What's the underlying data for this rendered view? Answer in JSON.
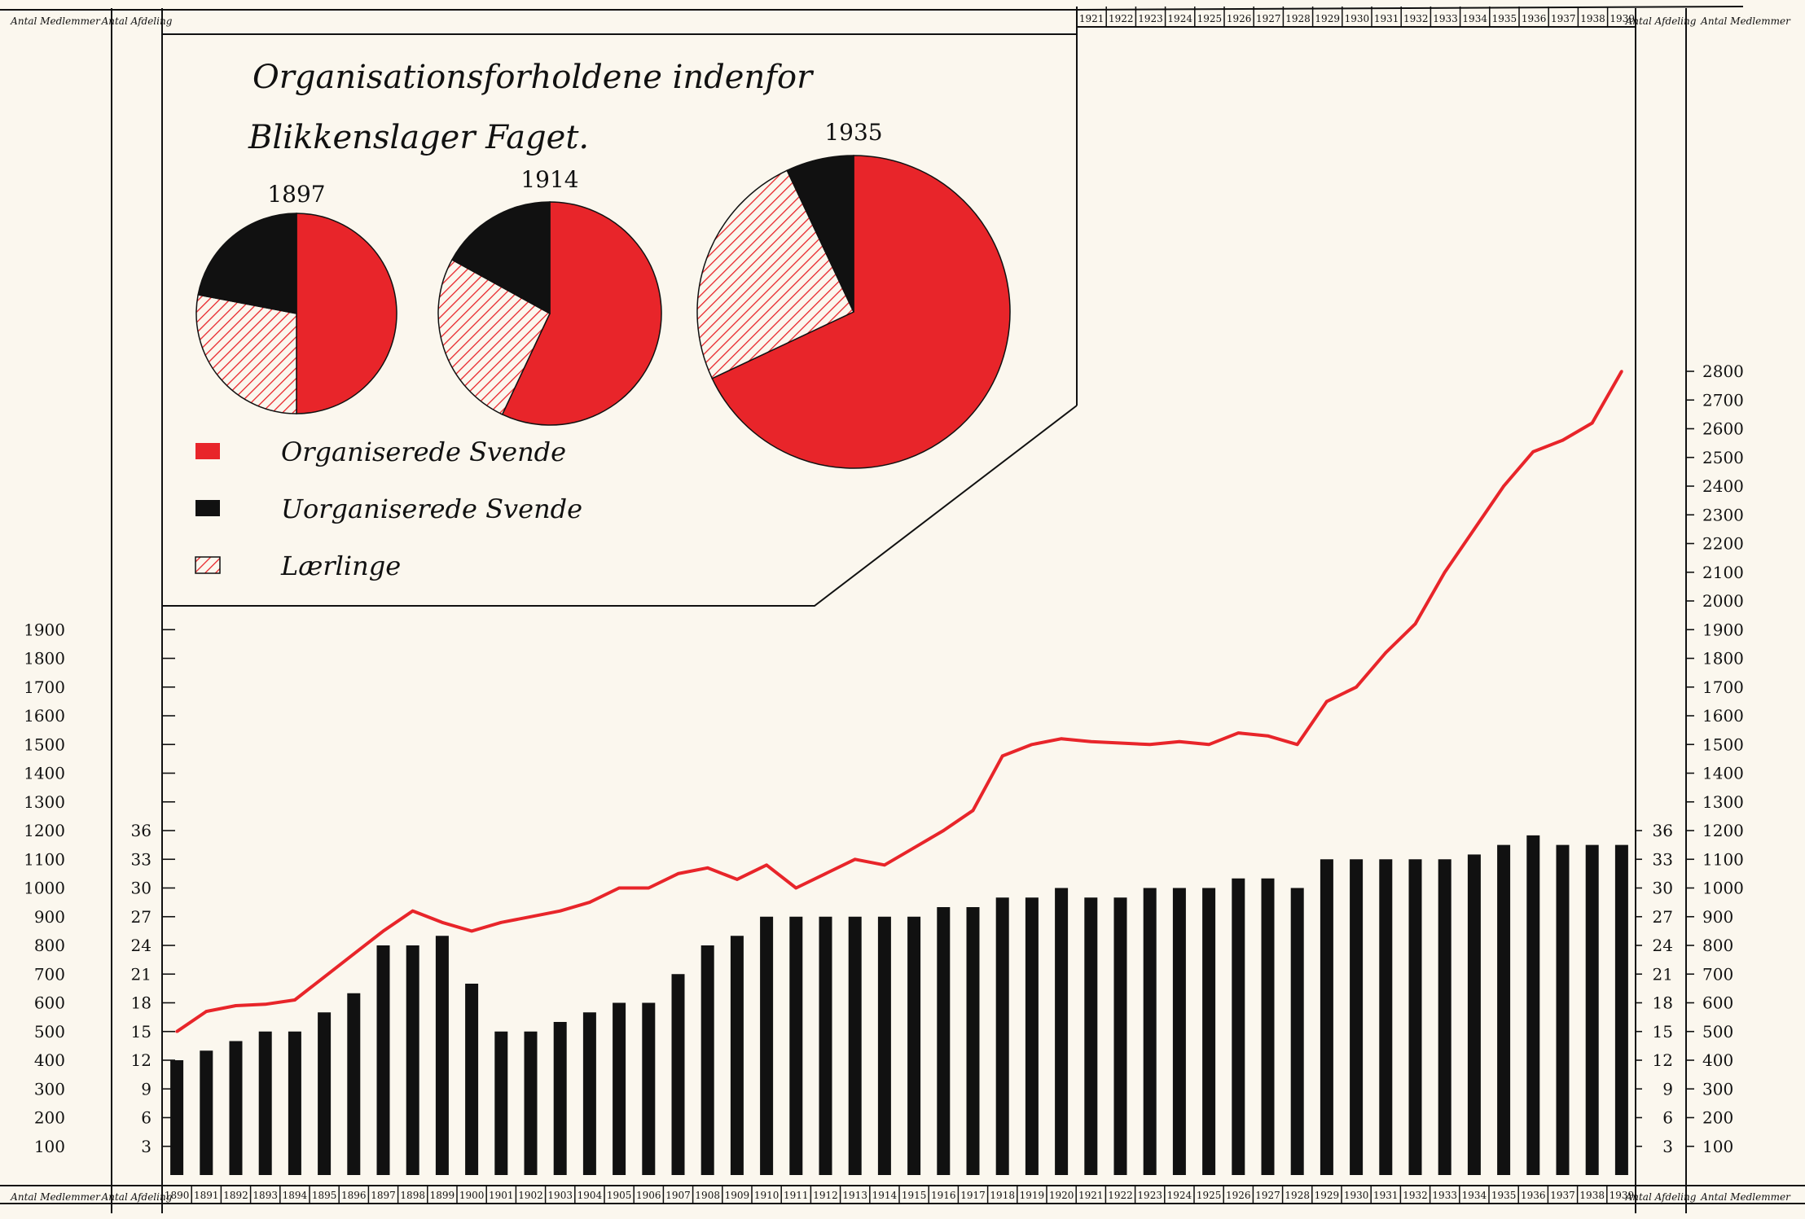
{
  "chart_data": {
    "type": "bar",
    "title_line1": "Organisationsforholdene indenfor",
    "title_line2": "Blikkenslager Faget.",
    "years": [
      "1890",
      "1891",
      "1892",
      "1893",
      "1894",
      "1895",
      "1896",
      "1897",
      "1898",
      "1899",
      "1900",
      "1901",
      "1902",
      "1903",
      "1904",
      "1905",
      "1906",
      "1907",
      "1908",
      "1909",
      "1910",
      "1911",
      "1912",
      "1913",
      "1914",
      "1915",
      "1916",
      "1917",
      "1918",
      "1919",
      "1920",
      "1921",
      "1922",
      "1923",
      "1924",
      "1925",
      "1926",
      "1927",
      "1928",
      "1929",
      "1930",
      "1931",
      "1932",
      "1933",
      "1934",
      "1935",
      "1936",
      "1937",
      "1938",
      "1939"
    ],
    "series": [
      {
        "name": "Antal Afdelinger",
        "type": "bar",
        "color": "#111111",
        "values": [
          12,
          13,
          14,
          15,
          15,
          17,
          19,
          24,
          24,
          25,
          20,
          15,
          15,
          16,
          17,
          18,
          18,
          21,
          24,
          25,
          27,
          27,
          27,
          27,
          27,
          27,
          28,
          28,
          29,
          29,
          30,
          29,
          29,
          30,
          30,
          30,
          31,
          31,
          30,
          33,
          33,
          33,
          33,
          33,
          33.5,
          34.5,
          35.5,
          34.5,
          34.5,
          34.5
        ]
      },
      {
        "name": "Antal Medlemmer",
        "type": "line",
        "color": "#e8252a",
        "values": [
          500,
          570,
          590,
          595,
          610,
          690,
          770,
          850,
          920,
          880,
          850,
          880,
          900,
          920,
          950,
          1000,
          1000,
          1050,
          1070,
          1030,
          1080,
          1000,
          1050,
          1100,
          1080,
          1140,
          1200,
          1270,
          1460,
          1500,
          1520,
          1510,
          1505,
          1500,
          1510,
          1500,
          1540,
          1530,
          1500,
          1650,
          1700,
          1820,
          1920,
          2100,
          2250,
          2400,
          2520,
          2560,
          2620,
          2800
        ]
      }
    ],
    "left_axis": {
      "medlemmer_ticks": [
        "100",
        "200",
        "300",
        "400",
        "500",
        "600",
        "700",
        "800",
        "900",
        "1000",
        "1100",
        "1200",
        "1300",
        "1400",
        "1500",
        "1600",
        "1700",
        "1800",
        "1900"
      ],
      "afdeling_ticks": [
        "3",
        "6",
        "9",
        "12",
        "15",
        "18",
        "21",
        "24",
        "27",
        "30",
        "33",
        "36"
      ]
    },
    "right_axis": {
      "medlemmer_ticks": [
        "100",
        "200",
        "300",
        "400",
        "500",
        "600",
        "700",
        "800",
        "900",
        "1000",
        "1100",
        "1200",
        "1300",
        "1400",
        "1500",
        "1600",
        "1700",
        "1800",
        "1900",
        "2000",
        "2100",
        "2200",
        "2300",
        "2400",
        "2500",
        "2600",
        "2700",
        "2800"
      ],
      "afdeling_ticks": [
        "3",
        "6",
        "9",
        "12",
        "15",
        "18",
        "21",
        "24",
        "27",
        "30",
        "33",
        "36"
      ]
    },
    "ylim_medlemmer": [
      0,
      2800
    ],
    "ylim_afdelinger": [
      0,
      36
    ],
    "column_headers": {
      "medlemmer": "Antal Medlemmer",
      "afdeling": "Antal Afdeling"
    },
    "pies": [
      {
        "year": "1897",
        "organiserede": 50,
        "uorganiserede": 22,
        "laerlinge": 28
      },
      {
        "year": "1914",
        "organiserede": 57,
        "uorganiserede": 17,
        "laerlinge": 26
      },
      {
        "year": "1935",
        "organiserede": 68,
        "uorganiserede": 7,
        "laerlinge": 25
      }
    ],
    "legend": [
      {
        "label": "Organiserede Svende",
        "color": "#e8252a",
        "pattern": "solid"
      },
      {
        "label": "Uorganiserede Svende",
        "color": "#111111",
        "pattern": "solid"
      },
      {
        "label": "Lærlinge",
        "color": "#e8252a",
        "pattern": "hatch"
      }
    ],
    "legend_placement": "top-left",
    "grid": false
  }
}
